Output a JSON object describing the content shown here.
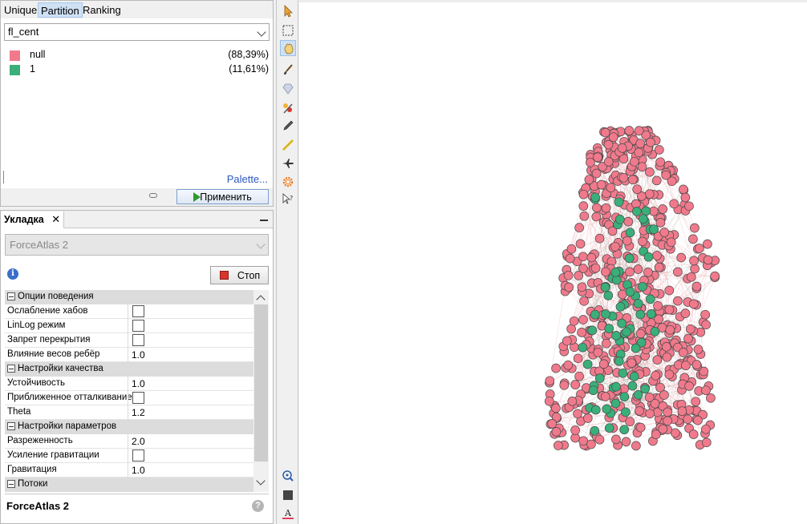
{
  "partition": {
    "tabs": [
      "Unique",
      "Partition",
      "Ranking"
    ],
    "selected_tab": "Partition",
    "attribute": "fl_cent",
    "legend": [
      {
        "label": "null",
        "percent": "(88,39%)",
        "color": "#f07a8c"
      },
      {
        "label": "1",
        "percent": "(11,61%)",
        "color": "#3aaf7a"
      }
    ],
    "palette_link": "Palette...",
    "apply_label": "Применить"
  },
  "layout": {
    "tab_label": "Укладка",
    "tab_close": "✕",
    "algorithm": "ForceAtlas 2",
    "info": "i",
    "stop_label": "Стоп",
    "rows": [
      {
        "type": "category",
        "label": "Опции поведения"
      },
      {
        "type": "check",
        "label": "Ослабление хабов",
        "checked": false
      },
      {
        "type": "check",
        "label": "LinLog режим",
        "checked": false
      },
      {
        "type": "check",
        "label": "Запрет перекрытия",
        "checked": false
      },
      {
        "type": "value",
        "label": "Влияние весов ребёр",
        "value": "1.0"
      },
      {
        "type": "category",
        "label": "Настройки качества"
      },
      {
        "type": "value",
        "label": "Устойчивость",
        "value": "1.0"
      },
      {
        "type": "check",
        "label": "Приближенное отталкивание",
        "checked": false
      },
      {
        "type": "value",
        "label": "Theta",
        "value": "1.2"
      },
      {
        "type": "category",
        "label": "Настройки параметров"
      },
      {
        "type": "value",
        "label": "Разреженность",
        "value": "2.0"
      },
      {
        "type": "check",
        "label": "Усиление гравитации",
        "checked": false
      },
      {
        "type": "value",
        "label": "Гравитация",
        "value": "1.0"
      },
      {
        "type": "category",
        "label": "Потоки"
      }
    ],
    "footer_title": "ForceAtlas 2",
    "help": "?"
  },
  "toolbar": {
    "tools": [
      "cursor-icon",
      "rect-select-icon",
      "hand-drag-icon",
      "brush-icon",
      "diamond-icon",
      "painter-icon",
      "pencil-icon",
      "ruler-icon",
      "airplane-icon",
      "gear-icon",
      "help-cursor-icon",
      "zoom-node-icon",
      "square-icon",
      "text-color-icon"
    ],
    "selected_tool": "hand-drag-icon"
  },
  "graph": {
    "node_colors": {
      "default": "#f07a8c",
      "central": "#3aaf7a"
    },
    "edge_color": "#e9a0a8",
    "central_edge_color": "#7fa98e"
  }
}
